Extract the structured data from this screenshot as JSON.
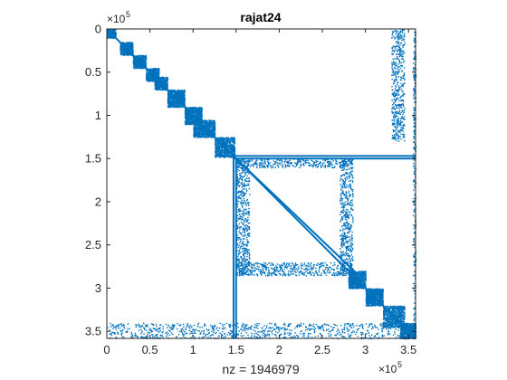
{
  "chart_data": {
    "type": "scatter",
    "subtype": "sparsity-pattern",
    "title": "rajat24",
    "xlabel": "nz = 1946979",
    "ylabel": "",
    "xlim": [
      0,
      358172
    ],
    "ylim": [
      0,
      358172
    ],
    "y_reversed": true,
    "x_ticks": [
      0,
      50000,
      100000,
      150000,
      200000,
      250000,
      300000,
      350000
    ],
    "x_tick_labels": [
      "0",
      "0.5",
      "1",
      "1.5",
      "2",
      "2.5",
      "3",
      "3.5"
    ],
    "y_ticks": [
      0,
      50000,
      100000,
      150000,
      200000,
      250000,
      300000,
      350000
    ],
    "y_tick_labels": [
      "0",
      "0.5",
      "1",
      "1.5",
      "2",
      "2.5",
      "3",
      "3.5"
    ],
    "x_exponent": {
      "base": "×10",
      "power": "5"
    },
    "y_exponent": {
      "base": "×10",
      "power": "5"
    },
    "marker_color": "#0072BD",
    "grid": false,
    "structure": {
      "diagonal_blocks": [
        {
          "x": [
            0,
            10000
          ],
          "y": [
            0,
            10000
          ]
        },
        {
          "x": [
            15000,
            30000
          ],
          "y": [
            15000,
            30000
          ]
        },
        {
          "x": [
            30000,
            45000
          ],
          "y": [
            30000,
            45000
          ]
        },
        {
          "x": [
            45000,
            60000
          ],
          "y": [
            45000,
            60000
          ]
        },
        {
          "x": [
            55000,
            70000
          ],
          "y": [
            55000,
            70000
          ]
        },
        {
          "x": [
            70000,
            90000
          ],
          "y": [
            70000,
            90000
          ]
        },
        {
          "x": [
            90000,
            110000
          ],
          "y": [
            90000,
            110000
          ]
        },
        {
          "x": [
            100000,
            125000
          ],
          "y": [
            105000,
            125000
          ]
        },
        {
          "x": [
            125000,
            148000
          ],
          "y": [
            125000,
            148000
          ]
        },
        {
          "x": [
            280000,
            300000
          ],
          "y": [
            280000,
            300000
          ]
        },
        {
          "x": [
            300000,
            320000
          ],
          "y": [
            300000,
            320000
          ]
        },
        {
          "x": [
            320000,
            345000
          ],
          "y": [
            320000,
            345000
          ]
        },
        {
          "x": [
            340000,
            358000
          ],
          "y": [
            340000,
            358000
          ]
        }
      ],
      "diagonal_lines": [
        {
          "x": [
            0,
            358000
          ],
          "y": [
            0,
            358000
          ]
        },
        {
          "x": [
            150000,
            290000
          ],
          "y": [
            150000,
            283000
          ]
        }
      ],
      "horizontal_lines": [
        {
          "y": 147000,
          "x": [
            148000,
            358000
          ]
        },
        {
          "y": 150000,
          "x": [
            148000,
            358000
          ]
        }
      ],
      "vertical_lines": [
        {
          "x": 147000,
          "y": [
            147000,
            358000
          ]
        },
        {
          "x": 150000,
          "y": [
            150000,
            358000
          ]
        }
      ],
      "dense_regions": [
        {
          "x": [
            0,
            358000
          ],
          "y": [
            340000,
            358000
          ]
        },
        {
          "x": [
            355000,
            358000
          ],
          "y": [
            0,
            358000
          ]
        },
        {
          "x": [
            150000,
            285000
          ],
          "y": [
            150000,
            160000
          ]
        },
        {
          "x": [
            150000,
            285000
          ],
          "y": [
            270000,
            285000
          ]
        },
        {
          "x": [
            150000,
            165000
          ],
          "y": [
            150000,
            285000
          ]
        },
        {
          "x": [
            270000,
            285000
          ],
          "y": [
            150000,
            285000
          ]
        },
        {
          "x": [
            330000,
            345000
          ],
          "y": [
            0,
            130000
          ]
        }
      ]
    }
  }
}
